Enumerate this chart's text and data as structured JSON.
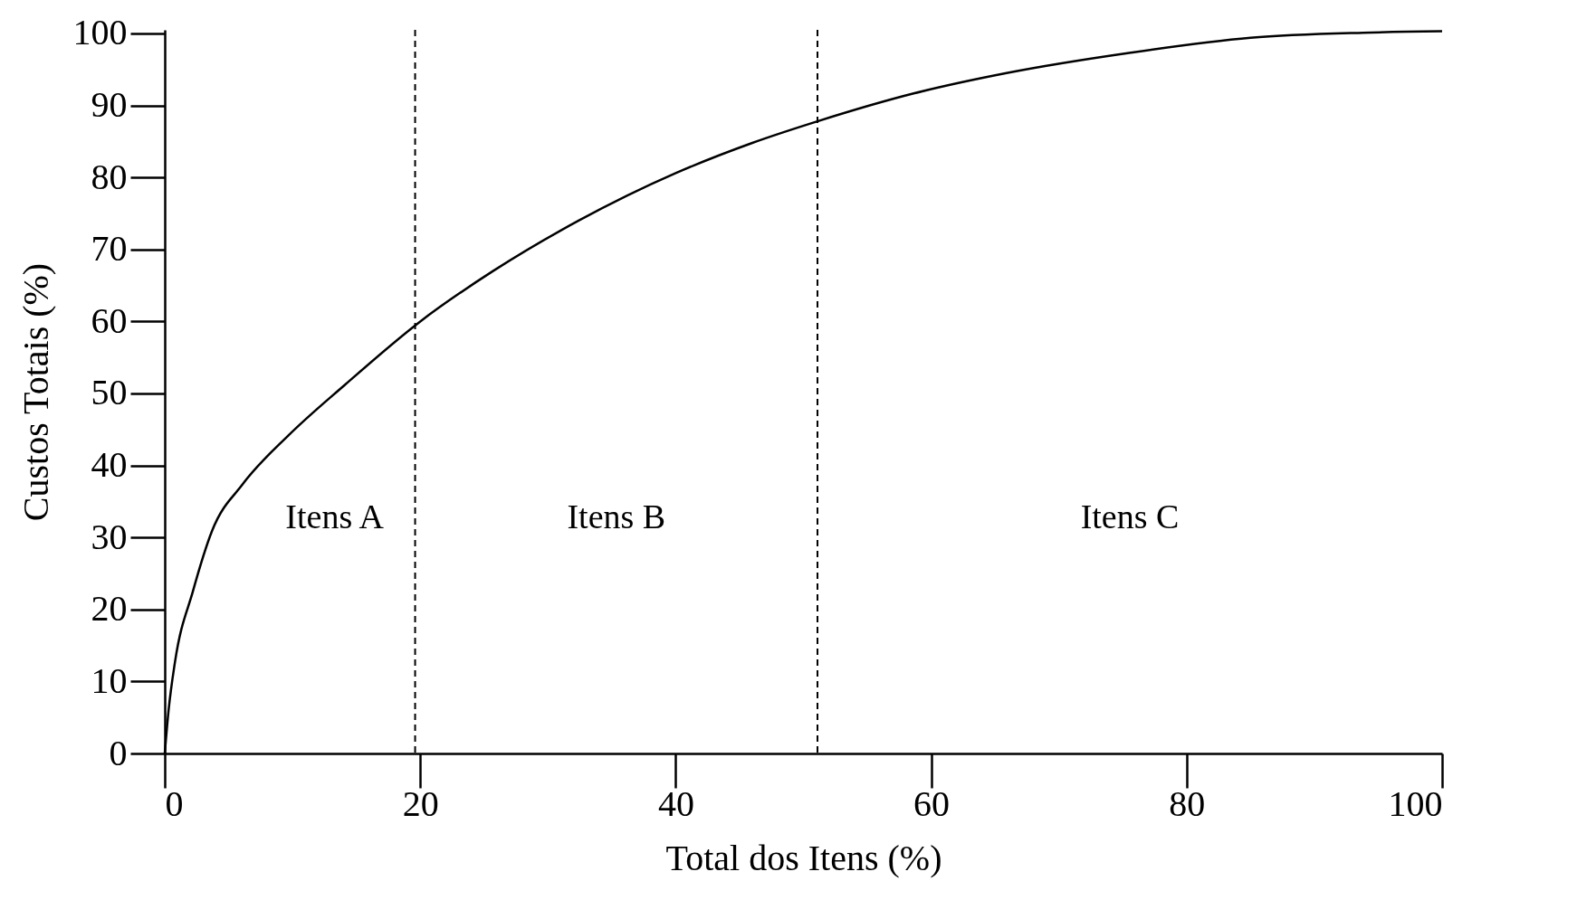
{
  "chart_data": {
    "type": "line",
    "xlabel": "Total dos Itens (%)",
    "ylabel": "Custos Totais (%)",
    "x": [
      0,
      0.3,
      0.8,
      2.2,
      3.7,
      6.1,
      9.7,
      14.1,
      20,
      25.7,
      32.4,
      40,
      46,
      51.1,
      58.7,
      65.9,
      75.5,
      85,
      93.8,
      100
    ],
    "series": [
      {
        "color": "#000000",
        "values": [
          0,
          6,
          12.7,
          22.5,
          30.9,
          37.4,
          44.2,
          51.2,
          60,
          67,
          74,
          80.6,
          84.8,
          87.8,
          91.7,
          94.5,
          97.3,
          99.4,
          100.1,
          100.3
        ]
      }
    ],
    "xlim": [
      0,
      100
    ],
    "ylim": [
      0,
      100.5
    ],
    "xticks": [
      0,
      20,
      40,
      60,
      80,
      100
    ],
    "yticks": [
      0,
      10,
      20,
      30,
      40,
      50,
      60,
      70,
      80,
      90,
      100
    ],
    "grid": false,
    "legend": false,
    "marker": "none",
    "line_style": "solid",
    "ref_lines": [
      {
        "axis": "x",
        "value": 19.6,
        "line_style": "dashed"
      },
      {
        "axis": "x",
        "value": 51.1,
        "line_style": "dashed"
      }
    ],
    "annotations": [
      "Itens A",
      "Itens B",
      "Itens C"
    ]
  }
}
